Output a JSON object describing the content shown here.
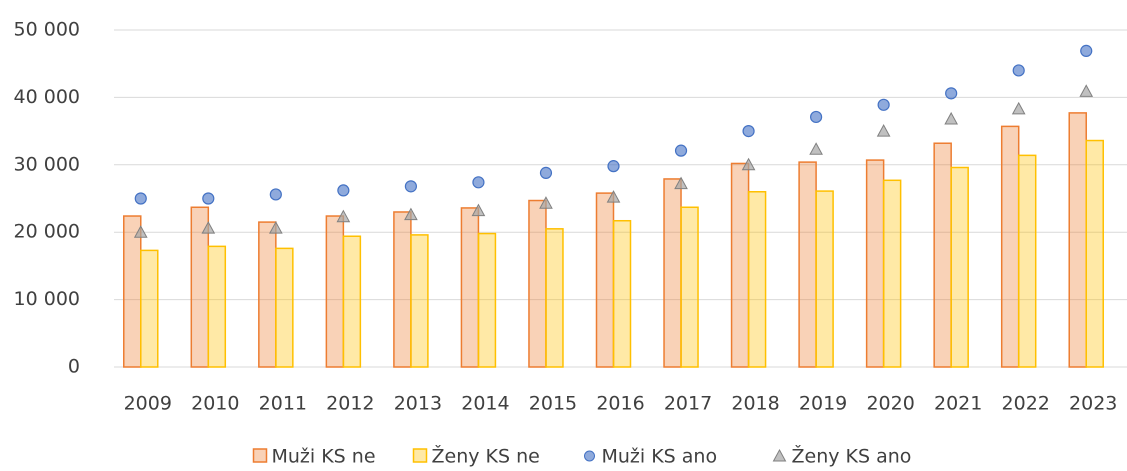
{
  "chart_data": {
    "type": "bar",
    "categories": [
      "2009",
      "2010",
      "2011",
      "2012",
      "2013",
      "2014",
      "2015",
      "2016",
      "2017",
      "2018",
      "2019",
      "2020",
      "2021",
      "2022",
      "2023"
    ],
    "series": [
      {
        "name": "Muži KS ne",
        "color": "#ed7d31",
        "marker": "bar",
        "values": [
          22400,
          23700,
          21500,
          22400,
          23000,
          23600,
          24700,
          25800,
          27900,
          30200,
          30400,
          30700,
          33200,
          35700,
          37700
        ]
      },
      {
        "name": "Ženy KS ne",
        "color": "#ffc000",
        "marker": "bar",
        "values": [
          17300,
          17900,
          17600,
          19400,
          19600,
          19800,
          20500,
          21700,
          23700,
          26000,
          26100,
          27700,
          29600,
          31400,
          33600
        ]
      },
      {
        "name": "Muži KS ano",
        "color": "#4472c4",
        "marker": "circle",
        "values": [
          25000,
          25000,
          25600,
          26200,
          26800,
          27400,
          28800,
          29800,
          32100,
          35000,
          37100,
          38900,
          40600,
          44000,
          46900
        ]
      },
      {
        "name": "Ženy KS ano",
        "color": "#a5a5a5",
        "marker": "triangle",
        "values": [
          20000,
          20600,
          20600,
          22300,
          22600,
          23200,
          24300,
          25200,
          27200,
          30000,
          32300,
          35000,
          36800,
          38300,
          40900
        ]
      }
    ],
    "ylim": [
      0,
      50000
    ],
    "yticks": [
      0,
      {
        "value": 10000,
        "label": "10 000"
      },
      {
        "value": 20000,
        "label": "20 000"
      },
      {
        "value": 30000,
        "label": "30 000"
      },
      {
        "value": 40000,
        "label": "40 000"
      },
      {
        "value": 50000,
        "label": "50 000"
      }
    ],
    "grid": true,
    "legend": "bottom"
  }
}
